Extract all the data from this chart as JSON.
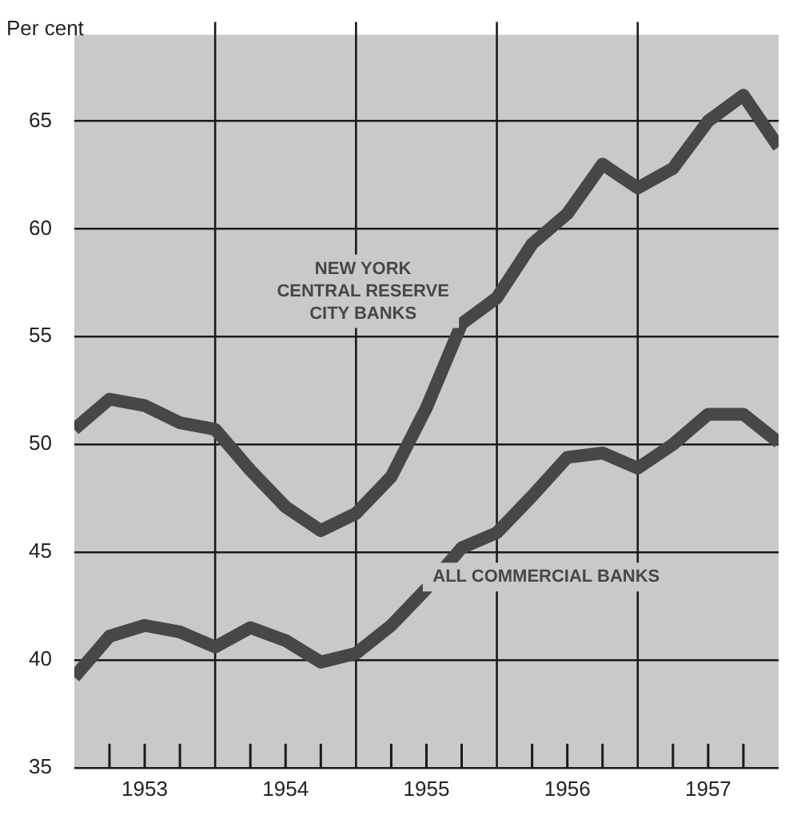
{
  "chart_data": {
    "type": "line",
    "ylabel": "Per cent",
    "x": [
      1953,
      1953.25,
      1953.5,
      1953.75,
      1954,
      1954.25,
      1954.5,
      1954.75,
      1955,
      1955.25,
      1955.5,
      1955.75,
      1956,
      1956.25,
      1956.5,
      1956.75,
      1957,
      1957.25,
      1957.5,
      1957.75,
      1958
    ],
    "series": [
      {
        "name": "NEW YORK CENTRAL RESERVE CITY BANKS",
        "color": "#474747",
        "values": [
          50.7,
          52.1,
          51.8,
          51.0,
          50.7,
          48.8,
          47.1,
          46.0,
          46.8,
          48.5,
          51.7,
          55.6,
          56.8,
          59.3,
          60.7,
          63.0,
          61.9,
          62.8,
          65.0,
          66.2,
          63.8
        ]
      },
      {
        "name": "ALL COMMERCIAL BANKS",
        "color": "#474747",
        "values": [
          39.2,
          41.1,
          41.6,
          41.3,
          40.6,
          41.5,
          40.9,
          39.9,
          40.3,
          41.6,
          43.3,
          45.2,
          45.9,
          47.6,
          49.4,
          49.6,
          48.9,
          50.0,
          51.4,
          51.4,
          50.1
        ]
      }
    ],
    "xlim": [
      1953,
      1958
    ],
    "xticks": [
      {
        "value": 1953.25,
        "label": null
      },
      {
        "value": 1953.5,
        "label": "1953"
      },
      {
        "value": 1953.75,
        "label": null
      },
      {
        "value": 1954.25,
        "label": null
      },
      {
        "value": 1954.5,
        "label": "1954"
      },
      {
        "value": 1954.75,
        "label": null
      },
      {
        "value": 1955.25,
        "label": null
      },
      {
        "value": 1955.5,
        "label": "1955"
      },
      {
        "value": 1955.75,
        "label": null
      },
      {
        "value": 1956.25,
        "label": null
      },
      {
        "value": 1956.5,
        "label": "1956"
      },
      {
        "value": 1956.75,
        "label": null
      },
      {
        "value": 1957.25,
        "label": null
      },
      {
        "value": 1957.5,
        "label": "1957"
      },
      {
        "value": 1957.75,
        "label": null
      }
    ],
    "ylim": [
      35,
      69
    ],
    "yticks": [
      35,
      40,
      45,
      50,
      55,
      60,
      65
    ],
    "ref_lines": [
      {
        "axis": "x",
        "value": 1954,
        "color": "#1a1a1a"
      },
      {
        "axis": "x",
        "value": 1955,
        "color": "#1a1a1a"
      },
      {
        "axis": "x",
        "value": 1956,
        "color": "#1a1a1a"
      },
      {
        "axis": "x",
        "value": 1957,
        "color": "#1a1a1a"
      }
    ],
    "grid": "y",
    "legend": false,
    "marker": "none",
    "line_style": "solid"
  }
}
